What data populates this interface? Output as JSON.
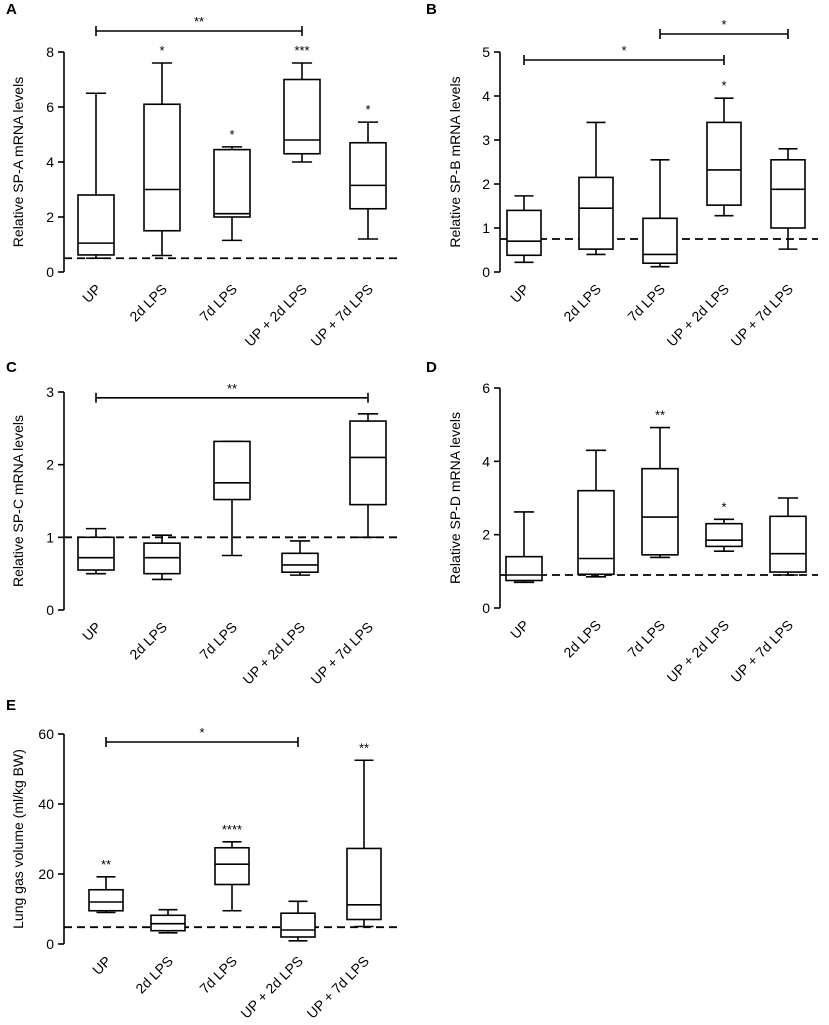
{
  "figure": {
    "colors": {
      "ink": "#000000",
      "background": "#ffffff",
      "box_fill": "#ffffff"
    }
  },
  "chart_data": [
    {
      "type": "box",
      "panel": "A",
      "title": "",
      "xlabel": "",
      "ylabel": "Relative SP-A mRNA levels",
      "categories": [
        "UP",
        "2d LPS",
        "7d LPS",
        "UP + 2d LPS",
        "UP + 7d LPS"
      ],
      "ylim": [
        0,
        8
      ],
      "yticks": [
        0,
        2,
        4,
        6,
        8
      ],
      "reference_line": 0.5,
      "boxes": [
        {
          "min": 0.5,
          "q1": 0.62,
          "median": 1.05,
          "q3": 2.8,
          "max": 6.5
        },
        {
          "min": 0.6,
          "q1": 1.5,
          "median": 3.0,
          "q3": 6.1,
          "max": 7.6
        },
        {
          "min": 1.15,
          "q1": 2.0,
          "median": 2.12,
          "q3": 4.45,
          "max": 4.55
        },
        {
          "min": 4.0,
          "q1": 4.3,
          "median": 4.8,
          "q3": 7.0,
          "max": 7.6
        },
        {
          "min": 1.2,
          "q1": 2.3,
          "median": 3.15,
          "q3": 4.7,
          "max": 5.45
        }
      ],
      "box_labels": [
        "",
        "*",
        "*",
        "***",
        "*"
      ],
      "brackets": [
        {
          "from": 0,
          "to": 3,
          "label": "**"
        }
      ]
    },
    {
      "type": "box",
      "panel": "B",
      "title": "",
      "xlabel": "",
      "ylabel": "Relative SP-B mRNA levels",
      "categories": [
        "UP",
        "2d LPS",
        "7d LPS",
        "UP + 2d LPS",
        "UP + 7d LPS"
      ],
      "ylim": [
        0,
        5
      ],
      "yticks": [
        0,
        1,
        2,
        3,
        4,
        5
      ],
      "reference_line": 0.75,
      "boxes": [
        {
          "min": 0.22,
          "q1": 0.38,
          "median": 0.7,
          "q3": 1.4,
          "max": 1.73
        },
        {
          "min": 0.4,
          "q1": 0.52,
          "median": 1.45,
          "q3": 2.15,
          "max": 3.4
        },
        {
          "min": 0.12,
          "q1": 0.2,
          "median": 0.4,
          "q3": 1.22,
          "max": 2.55
        },
        {
          "min": 1.28,
          "q1": 1.52,
          "median": 2.32,
          "q3": 3.4,
          "max": 3.95
        },
        {
          "min": 0.52,
          "q1": 1.0,
          "median": 1.88,
          "q3": 2.55,
          "max": 2.8
        }
      ],
      "box_labels": [
        "",
        "",
        "",
        "*",
        ""
      ],
      "brackets": [
        {
          "from": 0,
          "to": 3,
          "label": "*"
        },
        {
          "from": 2,
          "to": 4,
          "label": "*"
        }
      ]
    },
    {
      "type": "box",
      "panel": "C",
      "title": "",
      "xlabel": "",
      "ylabel": "Relative SP-C mRNA levels",
      "categories": [
        "UP",
        "2d LPS",
        "7d LPS",
        "UP + 2d LPS",
        "UP + 7d LPS"
      ],
      "ylim": [
        0,
        3
      ],
      "yticks": [
        0,
        1,
        2,
        3
      ],
      "reference_line": 1.0,
      "boxes": [
        {
          "min": 0.5,
          "q1": 0.55,
          "median": 0.72,
          "q3": 1.0,
          "max": 1.12
        },
        {
          "min": 0.42,
          "q1": 0.5,
          "median": 0.72,
          "q3": 0.92,
          "max": 1.03
        },
        {
          "min": 0.75,
          "q1": 1.52,
          "median": 1.75,
          "q3": 2.32,
          "max": 2.32
        },
        {
          "min": 0.48,
          "q1": 0.52,
          "median": 0.62,
          "q3": 0.78,
          "max": 0.95
        },
        {
          "min": 1.0,
          "q1": 1.45,
          "median": 2.1,
          "q3": 2.6,
          "max": 2.7
        }
      ],
      "box_labels": [
        "",
        "",
        "",
        "",
        ""
      ],
      "brackets": [
        {
          "from": 0,
          "to": 4,
          "label": "**"
        }
      ]
    },
    {
      "type": "box",
      "panel": "D",
      "title": "",
      "xlabel": "",
      "ylabel": "Relative SP-D mRNA levels",
      "categories": [
        "UP",
        "2d LPS",
        "7d LPS",
        "UP + 2d LPS",
        "UP + 7d LPS"
      ],
      "ylim": [
        0,
        6
      ],
      "yticks": [
        0,
        2,
        4,
        6
      ],
      "reference_line": 0.9,
      "boxes": [
        {
          "min": 0.7,
          "q1": 0.75,
          "median": 0.9,
          "q3": 1.4,
          "max": 2.62
        },
        {
          "min": 0.85,
          "q1": 0.92,
          "median": 1.35,
          "q3": 3.2,
          "max": 4.3
        },
        {
          "min": 1.38,
          "q1": 1.45,
          "median": 2.48,
          "q3": 3.8,
          "max": 4.92
        },
        {
          "min": 1.55,
          "q1": 1.68,
          "median": 1.85,
          "q3": 2.3,
          "max": 2.42
        },
        {
          "min": 0.9,
          "q1": 0.98,
          "median": 1.48,
          "q3": 2.5,
          "max": 3.0
        }
      ],
      "box_labels": [
        "",
        "",
        "**",
        "*",
        ""
      ],
      "brackets": []
    },
    {
      "type": "box",
      "panel": "E",
      "title": "",
      "xlabel": "",
      "ylabel": "Lung gas volume (ml/kg BW)",
      "categories": [
        "UP",
        "2d LPS",
        "7d LPS",
        "UP + 2d LPS",
        "UP + 7d LPS"
      ],
      "ylim": [
        0,
        60
      ],
      "yticks": [
        0,
        20,
        40,
        60
      ],
      "reference_line": 4.8,
      "boxes": [
        {
          "min": 9.0,
          "q1": 9.5,
          "median": 12.0,
          "q3": 15.5,
          "max": 19.2
        },
        {
          "min": 3.2,
          "q1": 3.8,
          "median": 5.8,
          "q3": 8.2,
          "max": 9.8
        },
        {
          "min": 9.5,
          "q1": 17.0,
          "median": 22.8,
          "q3": 27.5,
          "max": 29.2
        },
        {
          "min": 0.9,
          "q1": 2.0,
          "median": 4.0,
          "q3": 8.8,
          "max": 12.2
        },
        {
          "min": 5.0,
          "q1": 7.0,
          "median": 11.2,
          "q3": 27.3,
          "max": 52.5
        }
      ],
      "box_labels": [
        "**",
        "",
        "****",
        "",
        "**"
      ],
      "brackets": [
        {
          "from": 0,
          "to": 3,
          "label": "*"
        }
      ]
    }
  ]
}
